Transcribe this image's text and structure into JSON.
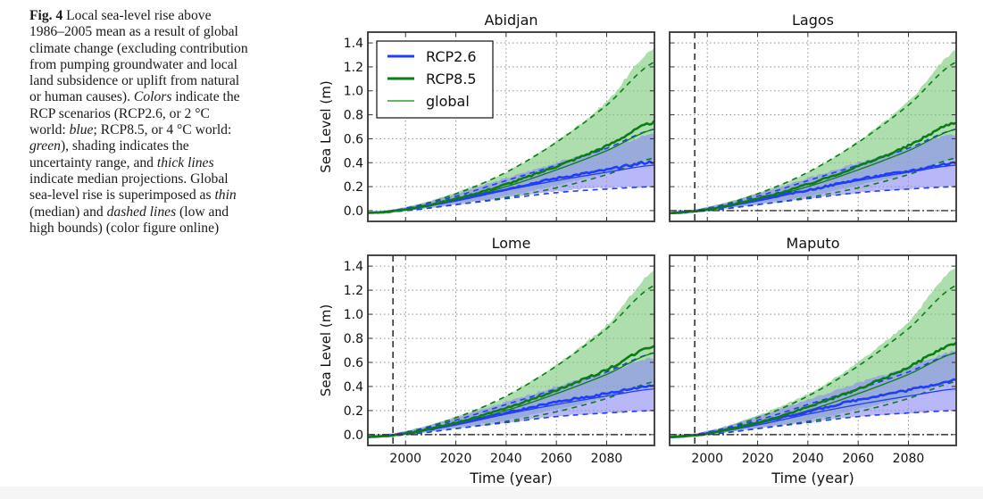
{
  "caption": {
    "label": "Fig. 4",
    "segments": [
      {
        "text": " Local sea-level rise above 1986–2005 mean as a result of global climate change (excluding contribution from pumping groundwater and local land subsidence or uplift from natural or human causes). ",
        "style": "normal"
      },
      {
        "text": "Colors",
        "style": "italic"
      },
      {
        "text": " indicate the RCP scenarios (RCP2.6, or 2 °C world: ",
        "style": "normal"
      },
      {
        "text": "blue",
        "style": "italic"
      },
      {
        "text": "; RCP8.5, or 4 °C world: ",
        "style": "normal"
      },
      {
        "text": "green",
        "style": "italic"
      },
      {
        "text": "), shading indicates the uncertainty range, and ",
        "style": "normal"
      },
      {
        "text": "thick lines",
        "style": "italic"
      },
      {
        "text": " indicate median projections. Global sea-level rise is superimposed as ",
        "style": "normal"
      },
      {
        "text": "thin",
        "style": "italic"
      },
      {
        "text": " (median) and ",
        "style": "normal"
      },
      {
        "text": "dashed lines",
        "style": "italic"
      },
      {
        "text": " (low and high bounds) (color figure online)",
        "style": "normal"
      }
    ]
  },
  "colors": {
    "rcp26": "#1f3cff",
    "rcp85": "#0a7d14",
    "global": "#2ca02c",
    "rcp26_fill": "#8c8cf5",
    "rcp85_fill": "#7dc97d",
    "overlap_fill": "#5a8a96",
    "grid": "#999999",
    "axis": "#333333"
  },
  "chart_data": [
    {
      "type": "line",
      "title": "Abidjan",
      "xlabel": "",
      "ylabel": "Sea Level (m)",
      "xlim": [
        1985,
        2099
      ],
      "ylim": [
        -0.09,
        1.49
      ],
      "xticks": [
        2000,
        2020,
        2040,
        2060,
        2080
      ],
      "xticklabels": [],
      "yticks": [
        0.0,
        0.2,
        0.4,
        0.6,
        0.8,
        1.0,
        1.2,
        1.4
      ],
      "yticklabels": [
        "0.0",
        "0.2",
        "0.4",
        "0.6",
        "0.8",
        "1.0",
        "1.2",
        "1.4"
      ],
      "grid": true,
      "legend": {
        "placement": "top-left",
        "entries": [
          "RCP2.6",
          "RCP8.5",
          "global"
        ]
      },
      "reference_year_line": null,
      "zero_line": false,
      "x": [
        1985,
        2000,
        2020,
        2040,
        2060,
        2080,
        2099
      ],
      "series": [
        {
          "name": "RCP2.6 median",
          "values": [
            -0.02,
            0.01,
            0.09,
            0.18,
            0.27,
            0.34,
            0.41
          ]
        },
        {
          "name": "RCP2.6 low",
          "values": [
            -0.03,
            0.0,
            0.05,
            0.11,
            0.16,
            0.19,
            0.2
          ]
        },
        {
          "name": "RCP2.6 high",
          "values": [
            -0.01,
            0.03,
            0.14,
            0.27,
            0.4,
            0.52,
            0.64
          ]
        },
        {
          "name": "RCP8.5 median",
          "values": [
            -0.02,
            0.01,
            0.1,
            0.22,
            0.37,
            0.54,
            0.74
          ]
        },
        {
          "name": "RCP8.5 low",
          "values": [
            -0.03,
            0.0,
            0.06,
            0.12,
            0.21,
            0.31,
            0.43
          ]
        },
        {
          "name": "RCP8.5 high",
          "values": [
            -0.01,
            0.03,
            0.15,
            0.32,
            0.58,
            0.91,
            1.36
          ]
        },
        {
          "name": "global RCP2.6 median",
          "values": [
            -0.02,
            0.01,
            0.08,
            0.17,
            0.25,
            0.32,
            0.38
          ]
        },
        {
          "name": "global RCP2.6 low",
          "values": [
            -0.02,
            0.0,
            0.05,
            0.1,
            0.15,
            0.18,
            0.2
          ]
        },
        {
          "name": "global RCP2.6 high",
          "values": [
            -0.02,
            0.02,
            0.12,
            0.25,
            0.38,
            0.52,
            0.68
          ]
        },
        {
          "name": "global RCP8.5 median",
          "values": [
            -0.02,
            0.01,
            0.09,
            0.2,
            0.34,
            0.5,
            0.68
          ]
        },
        {
          "name": "global RCP8.5 low",
          "values": [
            -0.02,
            0.0,
            0.05,
            0.11,
            0.19,
            0.3,
            0.44
          ]
        },
        {
          "name": "global RCP8.5 high",
          "values": [
            -0.02,
            0.02,
            0.14,
            0.32,
            0.57,
            0.88,
            1.24
          ]
        }
      ]
    },
    {
      "type": "line",
      "title": "Lagos",
      "xlabel": "",
      "ylabel": "",
      "xlim": [
        1985,
        2099
      ],
      "ylim": [
        -0.09,
        1.49
      ],
      "xticks": [
        2000,
        2020,
        2040,
        2060,
        2080
      ],
      "xticklabels": [],
      "yticks": [
        0.0,
        0.2,
        0.4,
        0.6,
        0.8,
        1.0,
        1.2,
        1.4
      ],
      "yticklabels": [],
      "grid": true,
      "legend": null,
      "reference_year_line": 1995,
      "zero_line": true,
      "x": [
        1985,
        2000,
        2020,
        2040,
        2060,
        2080,
        2099
      ],
      "series": [
        {
          "name": "RCP2.6 median",
          "values": [
            -0.02,
            0.01,
            0.09,
            0.17,
            0.26,
            0.33,
            0.4
          ]
        },
        {
          "name": "RCP2.6 low",
          "values": [
            -0.03,
            0.0,
            0.05,
            0.1,
            0.15,
            0.18,
            0.2
          ]
        },
        {
          "name": "RCP2.6 high",
          "values": [
            -0.01,
            0.03,
            0.14,
            0.27,
            0.4,
            0.52,
            0.64
          ]
        },
        {
          "name": "RCP8.5 median",
          "values": [
            -0.02,
            0.01,
            0.1,
            0.22,
            0.37,
            0.54,
            0.74
          ]
        },
        {
          "name": "RCP8.5 low",
          "values": [
            -0.03,
            0.0,
            0.06,
            0.12,
            0.21,
            0.31,
            0.43
          ]
        },
        {
          "name": "RCP8.5 high",
          "values": [
            -0.01,
            0.03,
            0.15,
            0.32,
            0.58,
            0.91,
            1.34
          ]
        },
        {
          "name": "global RCP2.6 median",
          "values": [
            -0.02,
            0.01,
            0.08,
            0.17,
            0.25,
            0.32,
            0.38
          ]
        },
        {
          "name": "global RCP2.6 low",
          "values": [
            -0.02,
            0.0,
            0.05,
            0.1,
            0.15,
            0.18,
            0.2
          ]
        },
        {
          "name": "global RCP2.6 high",
          "values": [
            -0.02,
            0.02,
            0.12,
            0.25,
            0.38,
            0.52,
            0.68
          ]
        },
        {
          "name": "global RCP8.5 median",
          "values": [
            -0.02,
            0.01,
            0.09,
            0.2,
            0.34,
            0.5,
            0.68
          ]
        },
        {
          "name": "global RCP8.5 low",
          "values": [
            -0.02,
            0.0,
            0.05,
            0.11,
            0.19,
            0.3,
            0.44
          ]
        },
        {
          "name": "global RCP8.5 high",
          "values": [
            -0.02,
            0.02,
            0.14,
            0.32,
            0.57,
            0.88,
            1.24
          ]
        }
      ]
    },
    {
      "type": "line",
      "title": "Lome",
      "xlabel": "Time (year)",
      "ylabel": "Sea Level (m)",
      "xlim": [
        1985,
        2099
      ],
      "ylim": [
        -0.09,
        1.49
      ],
      "xticks": [
        2000,
        2020,
        2040,
        2060,
        2080
      ],
      "xticklabels": [
        "2000",
        "2020",
        "2040",
        "2060",
        "2080"
      ],
      "yticks": [
        0.0,
        0.2,
        0.4,
        0.6,
        0.8,
        1.0,
        1.2,
        1.4
      ],
      "yticklabels": [
        "0.0",
        "0.2",
        "0.4",
        "0.6",
        "0.8",
        "1.0",
        "1.2",
        "1.4"
      ],
      "grid": true,
      "legend": null,
      "reference_year_line": 1995,
      "zero_line": true,
      "x": [
        1985,
        2000,
        2020,
        2040,
        2060,
        2080,
        2099
      ],
      "series": [
        {
          "name": "RCP2.6 median",
          "values": [
            -0.02,
            0.01,
            0.09,
            0.18,
            0.27,
            0.34,
            0.41
          ]
        },
        {
          "name": "RCP2.6 low",
          "values": [
            -0.03,
            0.0,
            0.05,
            0.1,
            0.15,
            0.18,
            0.2
          ]
        },
        {
          "name": "RCP2.6 high",
          "values": [
            -0.01,
            0.03,
            0.14,
            0.27,
            0.4,
            0.52,
            0.64
          ]
        },
        {
          "name": "RCP8.5 median",
          "values": [
            -0.02,
            0.01,
            0.1,
            0.22,
            0.37,
            0.54,
            0.74
          ]
        },
        {
          "name": "RCP8.5 low",
          "values": [
            -0.03,
            0.0,
            0.06,
            0.12,
            0.21,
            0.31,
            0.43
          ]
        },
        {
          "name": "RCP8.5 high",
          "values": [
            -0.01,
            0.03,
            0.15,
            0.32,
            0.58,
            0.91,
            1.36
          ]
        },
        {
          "name": "global RCP2.6 median",
          "values": [
            -0.02,
            0.01,
            0.08,
            0.17,
            0.25,
            0.32,
            0.38
          ]
        },
        {
          "name": "global RCP2.6 low",
          "values": [
            -0.02,
            0.0,
            0.05,
            0.1,
            0.15,
            0.18,
            0.2
          ]
        },
        {
          "name": "global RCP2.6 high",
          "values": [
            -0.02,
            0.02,
            0.12,
            0.25,
            0.38,
            0.52,
            0.68
          ]
        },
        {
          "name": "global RCP8.5 median",
          "values": [
            -0.02,
            0.01,
            0.09,
            0.2,
            0.34,
            0.5,
            0.68
          ]
        },
        {
          "name": "global RCP8.5 low",
          "values": [
            -0.02,
            0.0,
            0.05,
            0.11,
            0.19,
            0.3,
            0.44
          ]
        },
        {
          "name": "global RCP8.5 high",
          "values": [
            -0.02,
            0.02,
            0.14,
            0.32,
            0.57,
            0.88,
            1.24
          ]
        }
      ]
    },
    {
      "type": "line",
      "title": "Maputo",
      "xlabel": "Time (year)",
      "ylabel": "",
      "xlim": [
        1985,
        2099
      ],
      "ylim": [
        -0.09,
        1.49
      ],
      "xticks": [
        2000,
        2020,
        2040,
        2060,
        2080
      ],
      "xticklabels": [
        "2000",
        "2020",
        "2040",
        "2060",
        "2080"
      ],
      "yticks": [
        0.0,
        0.2,
        0.4,
        0.6,
        0.8,
        1.0,
        1.2,
        1.4
      ],
      "yticklabels": [],
      "grid": true,
      "legend": null,
      "reference_year_line": 1995,
      "zero_line": true,
      "x": [
        1985,
        2000,
        2020,
        2040,
        2060,
        2080,
        2099
      ],
      "series": [
        {
          "name": "RCP2.6 median",
          "values": [
            -0.02,
            0.01,
            0.1,
            0.19,
            0.29,
            0.37,
            0.45
          ]
        },
        {
          "name": "RCP2.6 low",
          "values": [
            -0.03,
            0.0,
            0.05,
            0.1,
            0.15,
            0.18,
            0.2
          ]
        },
        {
          "name": "RCP2.6 high",
          "values": [
            -0.01,
            0.03,
            0.15,
            0.29,
            0.43,
            0.56,
            0.7
          ]
        },
        {
          "name": "RCP8.5 median",
          "values": [
            -0.02,
            0.01,
            0.1,
            0.23,
            0.38,
            0.56,
            0.76
          ]
        },
        {
          "name": "RCP8.5 low",
          "values": [
            -0.03,
            0.0,
            0.06,
            0.12,
            0.21,
            0.32,
            0.45
          ]
        },
        {
          "name": "RCP8.5 high",
          "values": [
            -0.01,
            0.03,
            0.16,
            0.34,
            0.6,
            0.94,
            1.39
          ]
        },
        {
          "name": "global RCP2.6 median",
          "values": [
            -0.02,
            0.01,
            0.08,
            0.17,
            0.25,
            0.32,
            0.38
          ]
        },
        {
          "name": "global RCP2.6 low",
          "values": [
            -0.02,
            0.0,
            0.05,
            0.1,
            0.15,
            0.18,
            0.2
          ]
        },
        {
          "name": "global RCP2.6 high",
          "values": [
            -0.02,
            0.02,
            0.12,
            0.25,
            0.38,
            0.52,
            0.68
          ]
        },
        {
          "name": "global RCP8.5 median",
          "values": [
            -0.02,
            0.01,
            0.09,
            0.2,
            0.34,
            0.5,
            0.68
          ]
        },
        {
          "name": "global RCP8.5 low",
          "values": [
            -0.02,
            0.0,
            0.05,
            0.11,
            0.19,
            0.3,
            0.44
          ]
        },
        {
          "name": "global RCP8.5 high",
          "values": [
            -0.02,
            0.02,
            0.14,
            0.32,
            0.57,
            0.88,
            1.24
          ]
        }
      ]
    }
  ]
}
